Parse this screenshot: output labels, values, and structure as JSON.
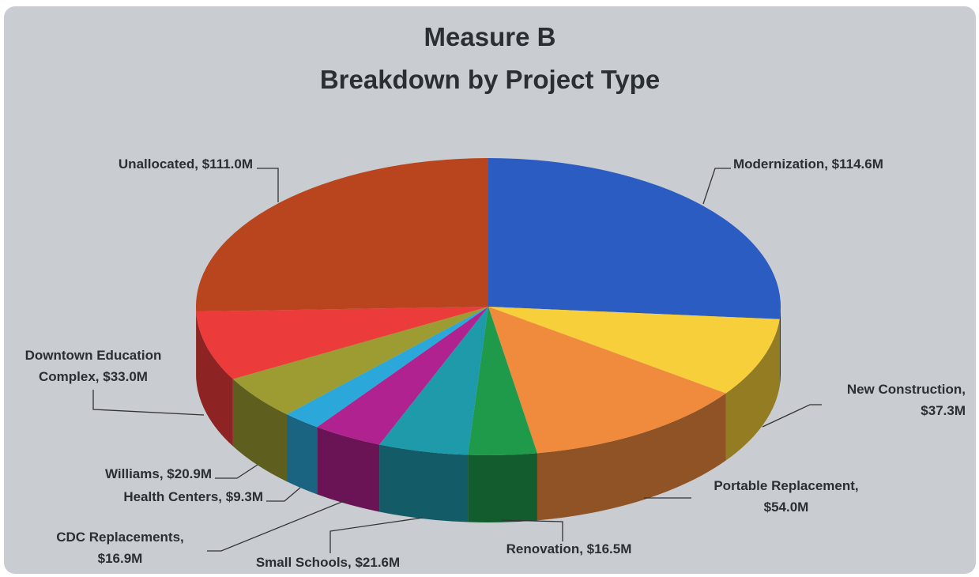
{
  "chart_data": {
    "type": "pie3d",
    "title": "Measure B",
    "subtitle": "Breakdown by Project Type",
    "categories": [
      "Modernization",
      "New Construction",
      "Portable Replacement",
      "Renovation",
      "Small Schools",
      "CDC Replacements",
      "Health Centers",
      "Williams",
      "Downtown Education Complex",
      "Unallocated"
    ],
    "values": [
      114.6,
      37.3,
      54.0,
      16.5,
      21.6,
      16.9,
      9.3,
      20.9,
      33.0,
      111.0
    ],
    "value_labels": [
      "$114.6M",
      "$37.3M",
      "$54.0M",
      "$16.5M",
      "$21.6M",
      "$16.9M",
      "$9.3M",
      "$20.9M",
      "$33.0M",
      "$111.0M"
    ],
    "colors": [
      "#2b5cc2",
      "#f6cf3b",
      "#f08b3d",
      "#1f9a4b",
      "#1f9aab",
      "#b0228f",
      "#2ca7d9",
      "#9c9c32",
      "#ec3b3b",
      "#b8451d"
    ]
  }
}
